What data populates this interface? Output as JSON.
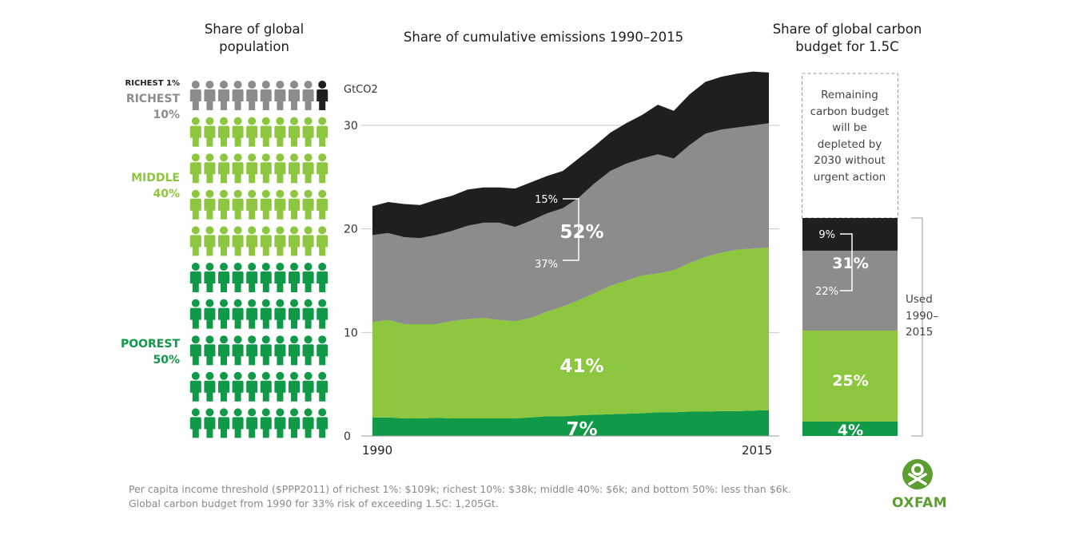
{
  "headers": {
    "population": "Share of global population",
    "emissions": "Share of cumulative emissions 1990–2015",
    "budget": "Share of global carbon budget for 1.5C"
  },
  "groups": {
    "richest1": "RICHEST 1%",
    "richest10_a": "RICHEST",
    "richest10_b": "10%",
    "middle_a": "MIDDLE",
    "middle_b": "40%",
    "poorest_a": "POOREST",
    "poorest_b": "50%"
  },
  "colors": {
    "richest1": "#1f1f1f",
    "richest10": "#8c8c8c",
    "middle": "#8dc63f",
    "poorest": "#109a48",
    "grid": "#c8c8c8",
    "white": "#ffffff"
  },
  "population_grid": {
    "columns": 10,
    "rows": [
      {
        "group": "richest10",
        "count": 9,
        "highlight_last": "richest1"
      },
      {
        "group": "middle",
        "count": 10
      },
      {
        "group": "middle",
        "count": 10
      },
      {
        "group": "middle",
        "count": 10
      },
      {
        "group": "middle",
        "count": 10
      },
      {
        "group": "poorest",
        "count": 10
      },
      {
        "group": "poorest",
        "count": 10
      },
      {
        "group": "poorest",
        "count": 10
      },
      {
        "group": "poorest",
        "count": 10
      },
      {
        "group": "poorest",
        "count": 10
      }
    ]
  },
  "chart_data": {
    "type": "area",
    "title": "Share of cumulative emissions 1990–2015",
    "ylabel": "GtCO2",
    "ylim": [
      0,
      35
    ],
    "yticks": [
      0,
      10,
      20,
      30
    ],
    "x_tick_labels": [
      "1990",
      "2015"
    ],
    "x": [
      1990,
      1991,
      1992,
      1993,
      1994,
      1995,
      1996,
      1997,
      1998,
      1999,
      2000,
      2001,
      2002,
      2003,
      2004,
      2005,
      2006,
      2007,
      2008,
      2009,
      2010,
      2011,
      2012,
      2013,
      2014,
      2015
    ],
    "stack_order": [
      "poorest",
      "middle",
      "richest10",
      "richest1"
    ],
    "series": [
      {
        "key": "poorest",
        "values": [
          1.8,
          1.8,
          1.7,
          1.7,
          1.75,
          1.7,
          1.7,
          1.7,
          1.7,
          1.7,
          1.8,
          1.9,
          1.9,
          2.0,
          2.05,
          2.1,
          2.15,
          2.2,
          2.3,
          2.3,
          2.35,
          2.35,
          2.4,
          2.4,
          2.45,
          2.5
        ]
      },
      {
        "key": "middle",
        "values": [
          11.0,
          11.2,
          10.8,
          10.8,
          10.8,
          11.1,
          11.3,
          11.4,
          11.2,
          11.1,
          11.4,
          12.0,
          12.5,
          13.1,
          13.8,
          14.5,
          15.0,
          15.5,
          15.7,
          16.0,
          16.7,
          17.3,
          17.7,
          18.0,
          18.1,
          18.2
        ]
      },
      {
        "key": "richest10",
        "values": [
          19.4,
          19.6,
          19.2,
          19.1,
          19.4,
          19.8,
          20.3,
          20.6,
          20.6,
          20.2,
          20.8,
          21.5,
          22.0,
          23.0,
          24.4,
          25.6,
          26.3,
          26.8,
          27.2,
          26.8,
          28.1,
          29.2,
          29.6,
          29.8,
          30.0,
          30.2
        ]
      },
      {
        "key": "richest1",
        "values": [
          22.2,
          22.6,
          22.4,
          22.3,
          22.8,
          23.2,
          23.8,
          24.0,
          24.0,
          23.9,
          24.5,
          25.1,
          25.6,
          26.8,
          28.0,
          29.3,
          30.2,
          31.0,
          32.0,
          31.4,
          33.0,
          34.2,
          34.7,
          35.0,
          35.2,
          35.1
        ]
      }
    ],
    "labels": {
      "richest1": "15%",
      "combined_richest10": "52%",
      "richest10": "37%",
      "middle": "41%",
      "poorest": "7%"
    },
    "budget": {
      "remaining_note": "Remaining carbon budget will be depleted by 2030 without urgent action",
      "used_label": "Used 1990–2015",
      "segments": [
        {
          "key": "poorest",
          "percent": 4,
          "label": "4%"
        },
        {
          "key": "middle",
          "percent": 25,
          "label": "25%"
        },
        {
          "key": "richest10",
          "percent": 22,
          "label": "22%"
        },
        {
          "key": "richest1",
          "percent": 9,
          "label": "9%"
        }
      ],
      "combined_label": "31%"
    }
  },
  "footnotes": {
    "line1": "Per capita income threshold ($PPP2011) of richest 1%: $109k; richest 10%: $38k; middle 40%: $6k; and bottom 50%: less than $6k.",
    "line2": "Global carbon budget from 1990 for 33% risk of exceeding 1.5C: 1,205Gt."
  },
  "brand": {
    "name": "OXFAM",
    "color": "#5c9e31"
  }
}
